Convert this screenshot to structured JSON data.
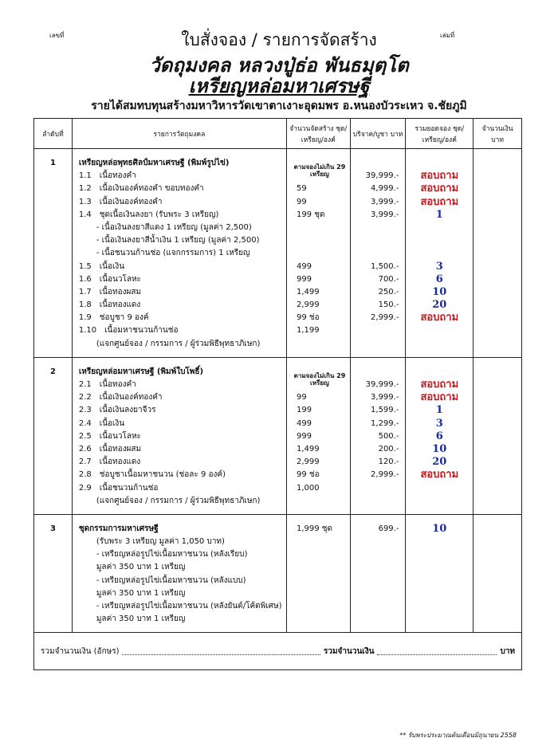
{
  "header": {
    "doc_no_label": "เลขที่",
    "book_no_label": "เล่มที่",
    "title": "ใบสั่งจอง / รายการจัดสร้าง",
    "temple": "วัดถุมงคล หลวงปู่ธ่อ พันธมฺตฺโต",
    "subtitle": "เหรียญหล่อมหาเศรษฐี",
    "purpose": "รายได้สมทบทุนสร้างมหาวิหารวัดเขาตาเงาะอุดมพร อ.หนองบัวระเหว จ.ชัยภูมิ"
  },
  "table": {
    "columns": [
      "ลำดับที่",
      "รายการวัตถุมงคล",
      "จำนวนจัดสร้าง ชุด/เหรียญ/องค์",
      "บริจาค/บูชา บาท",
      "รวมยอดจอง ชุด/เหรียญ/องค์",
      "จำนวนเงิน บาท"
    ],
    "sections": [
      {
        "no": "1",
        "title": "เหรียญหล่อพุทธศิลป์มหาเศรษฐี (พิมพ์รูปไข่)",
        "rows": [
          {
            "no": "1.1",
            "item": "เนื้อทองคำ",
            "qty": "ตามจองไม่เกิน 29 เหรียญ",
            "price": "39,999.-",
            "booked": "สอบถาม"
          },
          {
            "no": "1.2",
            "item": "เนื้อเงินองค์ทองคำ ขอบทองคำ",
            "qty": "59",
            "price": "4,999.-",
            "booked": "สอบถาม"
          },
          {
            "no": "1.3",
            "item": "เนื้อเงินองค์ทองคำ",
            "qty": "99",
            "price": "3,999.-",
            "booked": "สอบถาม"
          },
          {
            "no": "1.4",
            "item": "ชุดเนื้อเงินลงยา (รับพระ 3 เหรียญ)",
            "qty": "199 ชุด",
            "price": "3,999.-",
            "booked": 1
          },
          {
            "sub": "- เนื้อเงินลงยาสีแดง 1 เหรียญ (มูลค่า 2,500)"
          },
          {
            "sub": "- เนื้อเงินลงยาสีน้ำเงิน 1 เหรียญ (มูลค่า 2,500)"
          },
          {
            "sub": "- เนื้อชนวนก้านช่อ (แจกกรรมการ) 1 เหรียญ"
          },
          {
            "no": "1.5",
            "item": "เนื้อเงิน",
            "qty": "499",
            "price": "1,500.-",
            "booked": 3
          },
          {
            "no": "1.6",
            "item": "เนื้อนวโลหะ",
            "qty": "999",
            "price": "700.-",
            "booked": 6
          },
          {
            "no": "1.7",
            "item": "เนื้อทองผสม",
            "qty": "1,499",
            "price": "250.-",
            "booked": 10
          },
          {
            "no": "1.8",
            "item": "เนื้อทองแดง",
            "qty": "2,999",
            "price": "150.-",
            "booked": 20
          },
          {
            "no": "1.9",
            "item": "ช่อบูชา 9 องค์",
            "qty": "99 ช่อ",
            "price": "2,999.-",
            "booked": "สอบถาม"
          },
          {
            "no": "1.10",
            "item": "เนื้อมหาชนวนก้านช่อ",
            "qty": "1,199"
          },
          {
            "sub": "(แจกศูนย์จอง / กรรมการ / ผู้ร่วมพิธีพุทธาภิเษก)"
          }
        ]
      },
      {
        "no": "2",
        "title": "เหรียญหล่อมหาเศรษฐี (พิมพ์ใบโพธิ์)",
        "rows": [
          {
            "no": "2.1",
            "item": "เนื้อทองคำ",
            "qty": "ตามจองไม่เกิน 29 เหรียญ",
            "price": "39,999.-",
            "booked": "สอบถาม"
          },
          {
            "no": "2.2",
            "item": "เนื้อเงินองค์ทองคำ",
            "qty": "99",
            "price": "3,999.-",
            "booked": "สอบถาม"
          },
          {
            "no": "2.3",
            "item": "เนื้อเงินลงยาจีวร",
            "qty": "199",
            "price": "1,599.-",
            "booked": 1
          },
          {
            "no": "2.4",
            "item": "เนื้อเงิน",
            "qty": "499",
            "price": "1,299.-",
            "booked": 3
          },
          {
            "no": "2.5",
            "item": "เนื้อนวโลหะ",
            "qty": "999",
            "price": "500.-",
            "booked": 6
          },
          {
            "no": "2.6",
            "item": "เนื้อทองผสม",
            "qty": "1,499",
            "price": "200.-",
            "booked": 10
          },
          {
            "no": "2.7",
            "item": "เนื้อทองแดง",
            "qty": "2,999",
            "price": "120.-",
            "booked": 20
          },
          {
            "no": "2.8",
            "item": "ช่อบูชาเนื้อมหาชนวน (ช่อละ 9 องค์)",
            "qty": "99 ช่อ",
            "price": "2,999.-",
            "booked": "สอบถาม"
          },
          {
            "no": "2.9",
            "item": "เนื้อชนวนก้านช่อ",
            "qty": "1,000"
          },
          {
            "sub": "(แจกศูนย์จอง / กรรมการ / ผู้ร่วมพิธีพุทธาภิเษก)"
          }
        ]
      },
      {
        "no": "3",
        "title": "ชุดกรรมการมหาเศรษฐี",
        "qty": "1,999 ชุด",
        "price": "699.-",
        "booked": 10,
        "rows": [
          {
            "sub": "(รับพระ 3 เหรียญ มูลค่า 1,050 บาท)"
          },
          {
            "sub": "- เหรียญหล่อรูปไข่เนื้อมหาชนวน (หลังเรียบ)"
          },
          {
            "sub": "มูลค่า 350 บาท 1 เหรียญ"
          },
          {
            "sub": "- เหรียญหล่อรูปไข่เนื้อมหาชนวน (หลังแบบ)"
          },
          {
            "sub": "มูลค่า 350 บาท 1 เหรียญ"
          },
          {
            "sub": "- เหรียญหล่อรูปไข่เนื้อมหาชนวน (หลังยันต์/โค้ดพิเศษ)"
          },
          {
            "sub": "มูลค่า 350 บาท 1 เหรียญ"
          }
        ]
      }
    ]
  },
  "footer": {
    "words_label": "รวมจำนวนเงิน (อักษร)",
    "total_label": "รวมจำนวนเงิน",
    "unit": "บาท",
    "note": "** รับพระประมาณต้นเดือนมิถุนายน 2558"
  }
}
